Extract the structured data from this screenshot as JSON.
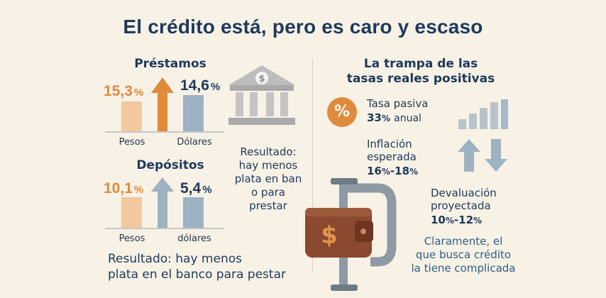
{
  "title": "El crédito está, pero es caro y escaso",
  "colors": {
    "orange": "#e08a3e",
    "peach": "#f4c89e",
    "navy": "#1d3a5c",
    "slate": "#9eb3c2",
    "grey": "#b8b8b8",
    "background": "#f8f2e6",
    "wallet": "#8b4a2f"
  },
  "prestamos": {
    "heading": "Préstamos",
    "pesos": {
      "value": "15,3",
      "unit": "%",
      "label": "Pesos"
    },
    "dolares": {
      "value": "14,6",
      "unit": "%",
      "label": "Dólares"
    },
    "arrow_direction": "up"
  },
  "depositos": {
    "heading": "Depósitos",
    "pesos": {
      "value": "10,1",
      "unit": "%",
      "label": "Pesos"
    },
    "dolares": {
      "value": "5,4",
      "unit": "%",
      "label": "dólares"
    },
    "arrow_direction": "up"
  },
  "bank_result": [
    "Resultado:",
    "hay menos",
    "plata en ban",
    "o para prestar"
  ],
  "bottom_result": [
    "Resultado: hay menos",
    "plata en el banco para pestar"
  ],
  "trampa": {
    "heading": [
      "La trampa de las",
      "tasas reales positivas"
    ],
    "badge_symbol": "%",
    "tasa_pasiva": {
      "label": "Tasa pasiva",
      "value": "33",
      "unit": "%",
      "suffix": "anual"
    },
    "inflacion": {
      "label": [
        "Inflación",
        "esperada"
      ],
      "value_a": "16",
      "value_b": "18",
      "unit": "%"
    },
    "devaluacion": {
      "label": [
        "Devaluación",
        "proyectada"
      ],
      "value_a": "10",
      "value_b": "12",
      "unit": "%"
    },
    "conclusion": [
      "Claramente, el",
      "que busca crédito",
      "la tiene complicada"
    ]
  },
  "icons": [
    "bank-icon",
    "dollar-coin-icon",
    "wallet-icon",
    "clamp-icon",
    "rising-bars-icon",
    "up-down-arrows-icon",
    "percent-badge-icon"
  ]
}
